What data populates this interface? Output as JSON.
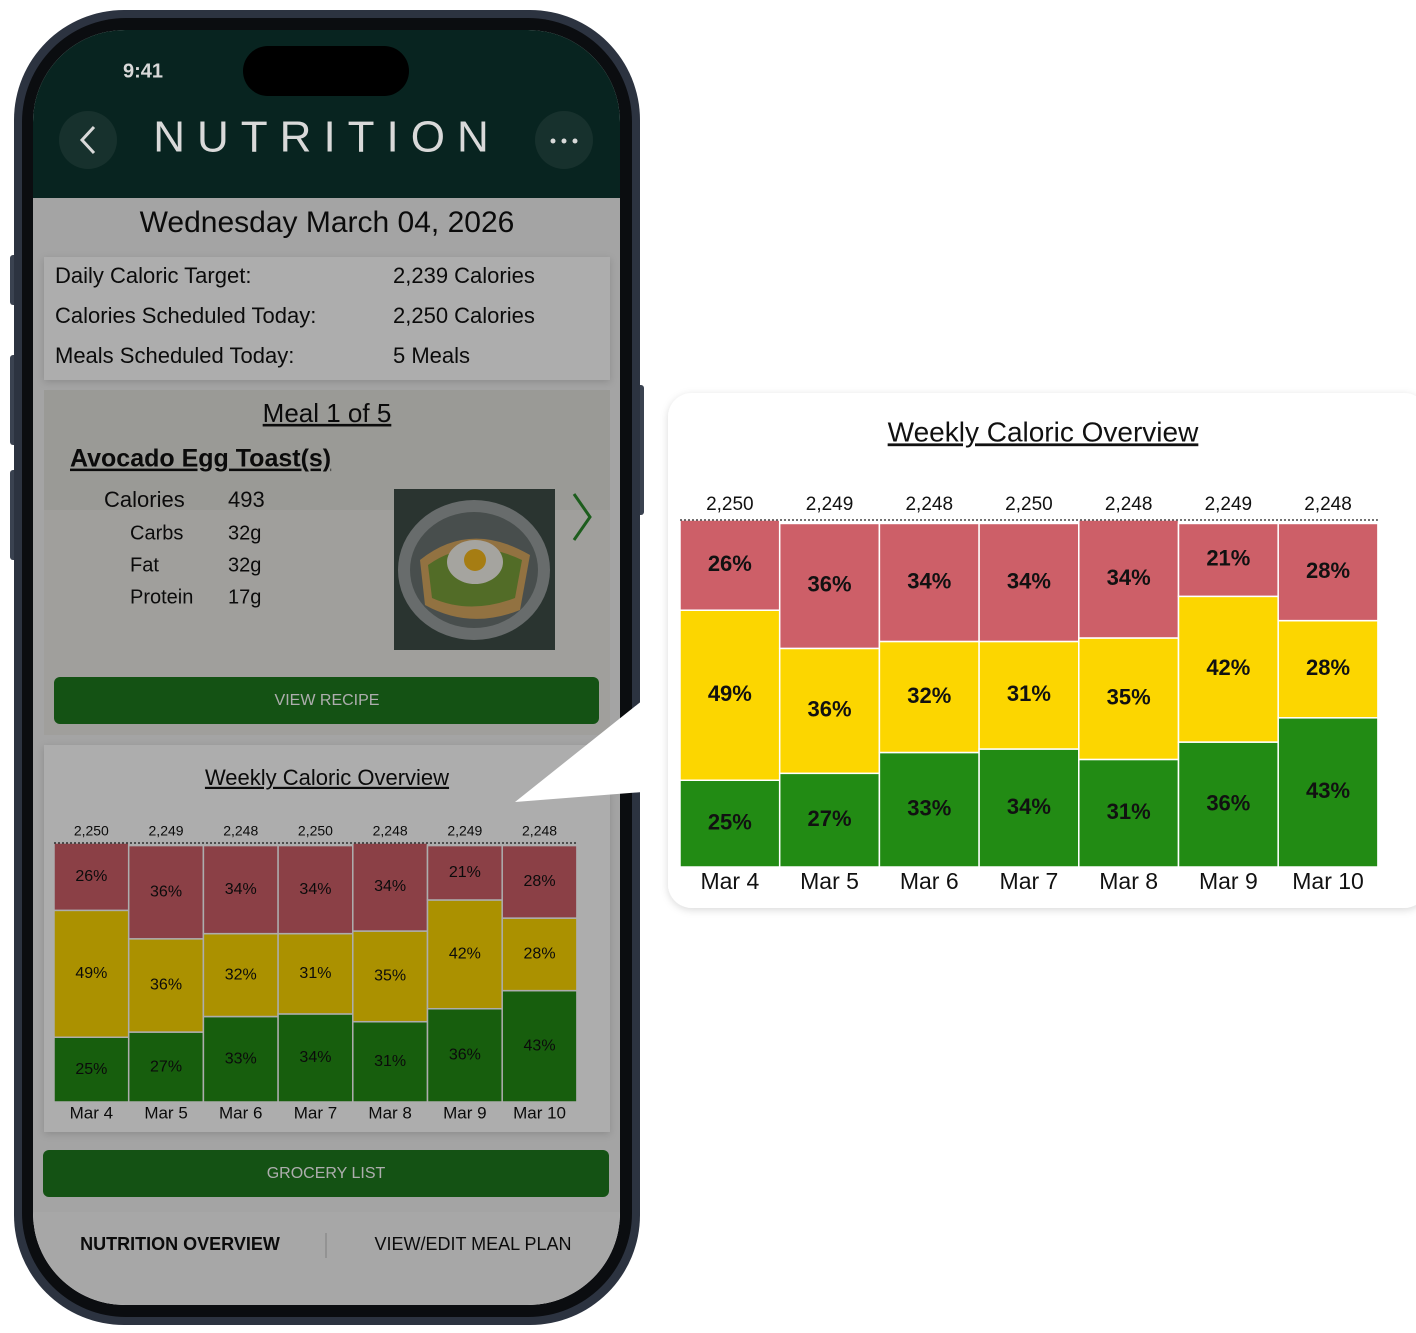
{
  "status": {
    "time": "9:41"
  },
  "header": {
    "title": "NUTRITION"
  },
  "date": "Wednesday March 04, 2026",
  "summary": [
    {
      "label": "Daily Caloric Target:",
      "value": "2,239 Calories"
    },
    {
      "label": "Calories Scheduled Today:",
      "value": "2,250 Calories"
    },
    {
      "label": "Meals Scheduled Today:",
      "value": "5 Meals"
    }
  ],
  "meal": {
    "heading": "Meal 1 of 5",
    "name": "Avocado Egg Toast(s)",
    "nutrients": [
      {
        "label": "Calories",
        "value": "493"
      },
      {
        "label": "Carbs",
        "value": "32g"
      },
      {
        "label": "Fat",
        "value": "32g"
      },
      {
        "label": "Protein",
        "value": "17g"
      }
    ],
    "button": "VIEW RECIPE"
  },
  "chart_data": {
    "type": "stacked_bar",
    "title": "Weekly Caloric Overview",
    "categories": [
      "Mar 4",
      "Mar 5",
      "Mar 6",
      "Mar 7",
      "Mar 8",
      "Mar 9",
      "Mar 10"
    ],
    "totals": {
      "values": [
        2250,
        2249,
        2248,
        2250,
        2248,
        2249,
        2248
      ],
      "value_labels": [
        "2,250",
        "2,249",
        "2,248",
        "2,250",
        "2,248",
        "2,249",
        "2,248"
      ]
    },
    "series": [
      {
        "color": "#228b14",
        "values": [
          25,
          27,
          33,
          34,
          31,
          36,
          43
        ],
        "value_labels": [
          "25%",
          "27%",
          "33%",
          "34%",
          "31%",
          "36%",
          "43%"
        ]
      },
      {
        "color": "#fcd600",
        "values": [
          49,
          36,
          32,
          31,
          35,
          42,
          28
        ],
        "value_labels": [
          "49%",
          "36%",
          "32%",
          "31%",
          "35%",
          "42%",
          "28%"
        ]
      },
      {
        "color": "#cd5f68",
        "values": [
          26,
          36,
          34,
          34,
          34,
          21,
          28
        ],
        "value_labels": [
          "26%",
          "36%",
          "34%",
          "34%",
          "34%",
          "21%",
          "28%"
        ]
      }
    ],
    "ylim": [
      0,
      100
    ]
  },
  "grocery_button": "GROCERY LIST",
  "tabs": [
    "NUTRITION OVERVIEW",
    "VIEW/EDIT MEAL PLAN"
  ]
}
